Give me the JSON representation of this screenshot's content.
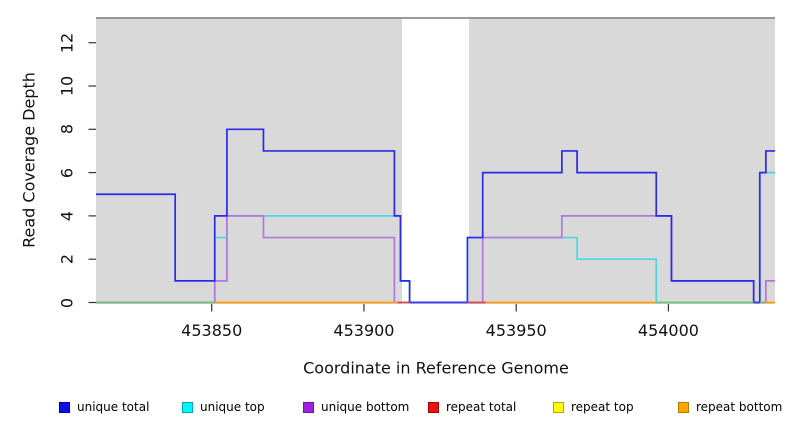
{
  "chart_data": {
    "type": "line",
    "subtype": "step-coverage",
    "title": "",
    "xlabel": "Coordinate in Reference Genome",
    "ylabel": "Read Coverage Depth",
    "xlim": [
      453812,
      454035
    ],
    "ylim": [
      0,
      13.2
    ],
    "x_ticks": [
      453850,
      453900,
      453950,
      454000
    ],
    "y_ticks": [
      0,
      2,
      4,
      6,
      8,
      10,
      12
    ],
    "grid": false,
    "plot_bg": "#D9D9D9",
    "top_border_color": "#8E8E8E",
    "gap_region": {
      "x1": 453912.5,
      "x2": 453934.5,
      "color": "#FFFFFF"
    },
    "series": [
      {
        "name": "repeat total",
        "color": "#D94040",
        "points": [
          [
            453812,
            0
          ],
          [
            454035,
            0
          ]
        ]
      },
      {
        "name": "repeat top",
        "color": "#F0F000",
        "points": [
          [
            453812,
            0
          ],
          [
            454035,
            0
          ]
        ]
      },
      {
        "name": "repeat bottom",
        "color": "#FFA21E",
        "points": [
          [
            453812,
            0
          ],
          [
            454035,
            0
          ]
        ]
      },
      {
        "name": "unique top",
        "color": "#4CD7E6",
        "points": [
          [
            453812,
            0
          ],
          [
            453851,
            3
          ],
          [
            453855,
            4
          ],
          [
            453912,
            1
          ],
          [
            453915,
            0
          ],
          [
            453934,
            3
          ],
          [
            453970,
            2
          ],
          [
            453996,
            0
          ],
          [
            454030,
            6
          ],
          [
            454035,
            6
          ]
        ]
      },
      {
        "name": "unique bottom",
        "color": "#B178DC",
        "points": [
          [
            453812,
            0
          ],
          [
            453851,
            1
          ],
          [
            453855,
            4
          ],
          [
            453867,
            3
          ],
          [
            453910,
            0
          ],
          [
            453939,
            3
          ],
          [
            453965,
            4
          ],
          [
            454001,
            1
          ],
          [
            454028,
            0
          ],
          [
            454032,
            1
          ],
          [
            454035,
            1
          ]
        ]
      },
      {
        "name": "unique total",
        "color": "#2A2AE8",
        "points": [
          [
            453812,
            5
          ],
          [
            453838,
            1
          ],
          [
            453851,
            4
          ],
          [
            453855,
            8
          ],
          [
            453867,
            7
          ],
          [
            453910,
            4
          ],
          [
            453912,
            1
          ],
          [
            453915,
            0
          ],
          [
            453934,
            3
          ],
          [
            453939,
            6
          ],
          [
            453965,
            7
          ],
          [
            453970,
            6
          ],
          [
            453996,
            4
          ],
          [
            454001,
            1
          ],
          [
            454028,
            0
          ],
          [
            454030,
            6
          ],
          [
            454032,
            7
          ],
          [
            454035,
            7
          ]
        ]
      }
    ],
    "zero_line_segments": [
      {
        "x1": 453812,
        "x2": 453851,
        "color": "#74C27A"
      },
      {
        "x1": 453851,
        "x2": 453911,
        "color": "#FFA21E"
      },
      {
        "x1": 453911,
        "x2": 453915,
        "color": "#D84A55"
      },
      {
        "x1": 453915,
        "x2": 453934,
        "color": "#3A3AE8"
      },
      {
        "x1": 453934,
        "x2": 453940,
        "color": "#D84A55"
      },
      {
        "x1": 453940,
        "x2": 453996,
        "color": "#FFA21E"
      },
      {
        "x1": 453996,
        "x2": 454028,
        "color": "#74C27A"
      },
      {
        "x1": 454028,
        "x2": 454030,
        "color": "#3A3AE8"
      },
      {
        "x1": 454030,
        "x2": 454032,
        "color": "#74C27A"
      },
      {
        "x1": 454032,
        "x2": 454035,
        "color": "#FFA21E"
      }
    ],
    "legend": [
      {
        "label": "unique total",
        "fill": "#0D0DE6",
        "border": "#0000B0"
      },
      {
        "label": "unique top",
        "fill": "#00F5FF",
        "border": "#00A8B8"
      },
      {
        "label": "unique bottom",
        "fill": "#A020E0",
        "border": "#6E12A8"
      },
      {
        "label": "repeat total",
        "fill": "#EE1111",
        "border": "#A00000"
      },
      {
        "label": "repeat top",
        "fill": "#FFFF00",
        "border": "#ABAB00"
      },
      {
        "label": "repeat bottom",
        "fill": "#FFA500",
        "border": "#BA7800"
      }
    ],
    "legend_position": "bottom"
  }
}
